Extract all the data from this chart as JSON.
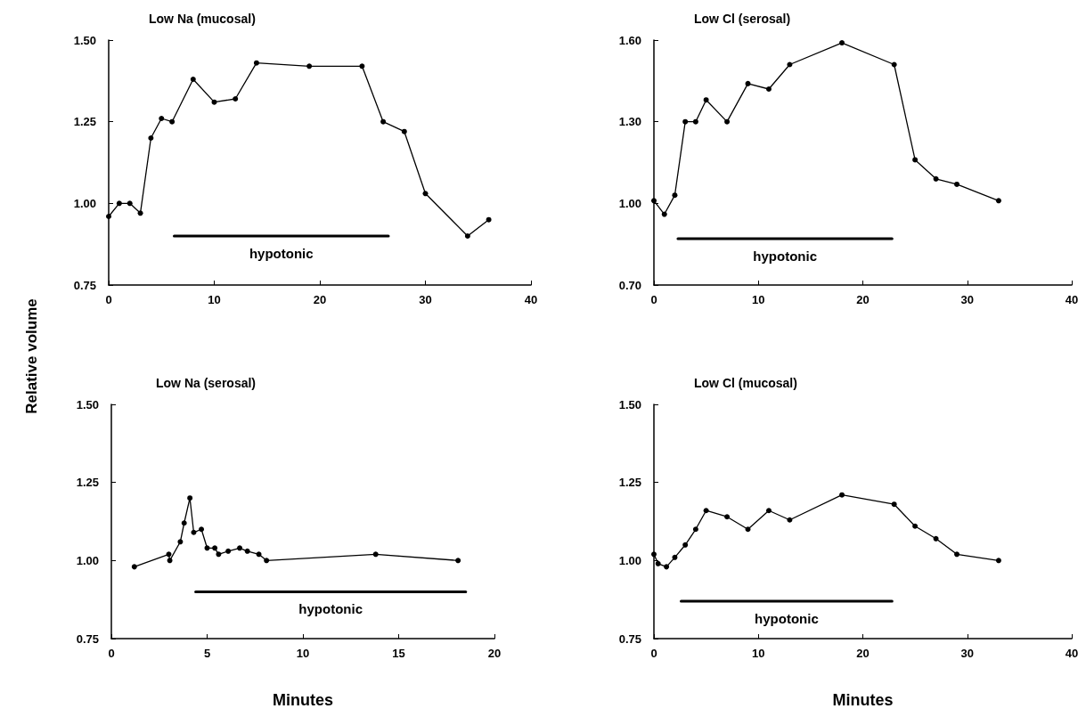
{
  "chart_data": [
    {
      "type": "line",
      "title": "Low Na (mucosal)",
      "ylabel": "Relative volume",
      "marker": "circle",
      "line_style": "solid",
      "grid": false,
      "x": [
        0,
        1,
        2,
        3,
        4,
        5,
        6,
        8,
        10,
        12,
        14,
        19,
        24,
        26,
        28,
        30,
        34,
        36
      ],
      "series": [
        {
          "color": "#000000",
          "values": [
            0.96,
            1.0,
            1.0,
            0.97,
            1.2,
            1.26,
            1.25,
            1.38,
            1.31,
            1.32,
            1.43,
            1.42,
            1.42,
            1.25,
            1.22,
            1.03,
            0.9,
            0.95
          ]
        },
        {
          "name": "hypotonic",
          "color": "#000000",
          "marker": "none",
          "x": [
            6.2,
            26.5
          ],
          "values": [
            0.9,
            0.9
          ]
        }
      ],
      "xlim": [
        0,
        40
      ],
      "xticks": [
        0,
        10,
        20,
        30,
        40
      ],
      "ylim": [
        0.75,
        1.5
      ],
      "yticks": [
        {
          "value": 0.75,
          "label": "0.75"
        },
        {
          "value": 1,
          "label": "1.00"
        },
        {
          "value": 1.25,
          "label": "1.25"
        },
        {
          "value": 1.5,
          "label": "1.50"
        }
      ]
    },
    {
      "type": "line",
      "title": "Low Cl (serosal)",
      "marker": "circle",
      "line_style": "solid",
      "grid": false,
      "x": [
        0,
        1,
        2,
        3,
        4,
        5,
        7,
        9,
        11,
        13,
        18,
        23,
        25,
        27,
        29,
        33
      ],
      "series": [
        {
          "color": "#000000",
          "values": [
            1.01,
            0.96,
            1.03,
            1.3,
            1.3,
            1.38,
            1.3,
            1.44,
            1.42,
            1.51,
            1.59,
            1.51,
            1.16,
            1.09,
            1.07,
            1.01
          ]
        },
        {
          "name": "hypotonic",
          "color": "#000000",
          "marker": "none",
          "x": [
            2.3,
            22.8
          ],
          "values": [
            0.87,
            0.87
          ]
        }
      ],
      "xlim": [
        0,
        40
      ],
      "xticks": [
        0,
        10,
        20,
        30,
        40
      ],
      "ylim": [
        0.7,
        1.6
      ],
      "yticks": [
        {
          "value": 0.7,
          "label": "0.70"
        },
        {
          "value": 1,
          "label": "1.00"
        },
        {
          "value": 1.3,
          "label": "1.30"
        },
        {
          "value": 1.6,
          "label": "1.60"
        }
      ]
    },
    {
      "type": "line",
      "title": "Low Na (serosal)",
      "xlabel": "Minutes",
      "marker": "circle",
      "line_style": "solid",
      "grid": false,
      "x": [
        1.2,
        3.0,
        3.05,
        3.6,
        3.8,
        4.1,
        4.3,
        4.7,
        5.0,
        5.4,
        5.6,
        6.1,
        6.7,
        7.1,
        7.7,
        8.1,
        13.8,
        18.1
      ],
      "series": [
        {
          "color": "#000000",
          "values": [
            0.98,
            1.02,
            1.0,
            1.06,
            1.12,
            1.2,
            1.09,
            1.1,
            1.04,
            1.04,
            1.02,
            1.03,
            1.04,
            1.03,
            1.02,
            1.0,
            1.02,
            1.0
          ]
        },
        {
          "name": "hypotonic",
          "color": "#000000",
          "marker": "none",
          "x": [
            4.4,
            18.5
          ],
          "values": [
            0.9,
            0.9
          ]
        }
      ],
      "xlim": [
        0,
        20
      ],
      "xticks": [
        0,
        5,
        10,
        15,
        20
      ],
      "ylim": [
        0.75,
        1.5
      ],
      "yticks": [
        {
          "value": 0.75,
          "label": "0.75"
        },
        {
          "value": 1,
          "label": "1.00"
        },
        {
          "value": 1.25,
          "label": "1.25"
        },
        {
          "value": 1.5,
          "label": "1.50"
        }
      ]
    },
    {
      "type": "line",
      "title": "Low Cl (mucosal)",
      "xlabel": "Minutes",
      "marker": "circle",
      "line_style": "solid",
      "grid": false,
      "x": [
        0,
        0.4,
        1.2,
        2,
        3,
        4,
        5,
        7,
        9,
        11,
        13,
        18,
        23,
        25,
        27,
        29,
        33
      ],
      "series": [
        {
          "color": "#000000",
          "values": [
            1.02,
            0.99,
            0.98,
            1.01,
            1.05,
            1.1,
            1.16,
            1.14,
            1.1,
            1.16,
            1.13,
            1.21,
            1.18,
            1.11,
            1.07,
            1.02,
            1.0
          ]
        },
        {
          "name": "hypotonic",
          "color": "#000000",
          "marker": "none",
          "x": [
            2.6,
            22.8
          ],
          "values": [
            0.87,
            0.87
          ]
        }
      ],
      "xlim": [
        0,
        40
      ],
      "xticks": [
        0,
        10,
        20,
        30,
        40
      ],
      "ylim": [
        0.75,
        1.5
      ],
      "yticks": [
        {
          "value": 0.75,
          "label": "0.75"
        },
        {
          "value": 1,
          "label": "1.00"
        },
        {
          "value": 1.25,
          "label": "1.25"
        },
        {
          "value": 1.5,
          "label": "1.50"
        }
      ]
    }
  ]
}
